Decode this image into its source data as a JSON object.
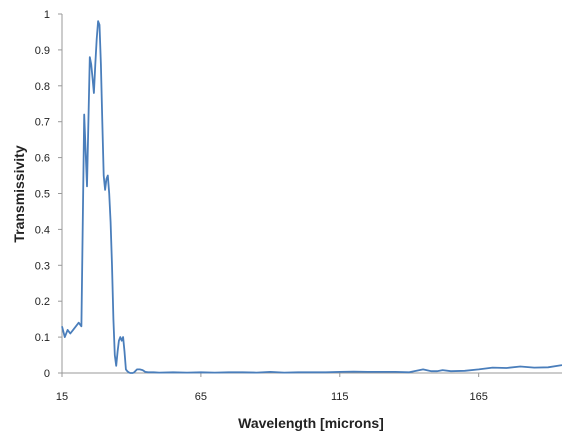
{
  "chart_data": {
    "type": "line",
    "title": "",
    "xlabel": "Wavelength [microns]",
    "ylabel": "Transmissivity",
    "xlim": [
      15,
      195
    ],
    "ylim": [
      0,
      1
    ],
    "x_ticks": [
      "15",
      "65",
      "115",
      "165"
    ],
    "y_ticks": [
      "0",
      "0.1",
      "0.2",
      "0.3",
      "0.4",
      "0.5",
      "0.6",
      "0.7",
      "0.8",
      "0.9",
      "1"
    ],
    "grid": false,
    "legend": "none",
    "series": [
      {
        "color": "#4a7ebb",
        "x": [
          15,
          16,
          17,
          18,
          19,
          20,
          21,
          22,
          23,
          24,
          25,
          25.5,
          26,
          26.5,
          27,
          27.5,
          28,
          28.5,
          29,
          29.5,
          30,
          30.5,
          31,
          31.5,
          32,
          32.5,
          33,
          33.5,
          34,
          34.5,
          35,
          35.5,
          36,
          36.5,
          37,
          37.5,
          38,
          38.5,
          39,
          39.5,
          40,
          40.5,
          41,
          42,
          43,
          44,
          45,
          46,
          47,
          48,
          50,
          55,
          60,
          65,
          70,
          75,
          80,
          85,
          90,
          95,
          100,
          105,
          110,
          115,
          120,
          125,
          130,
          135,
          140,
          145,
          148,
          150,
          152,
          155,
          160,
          165,
          170,
          175,
          180,
          185,
          190,
          195
        ],
        "y": [
          0.13,
          0.1,
          0.12,
          0.11,
          0.12,
          0.13,
          0.14,
          0.13,
          0.72,
          0.52,
          0.88,
          0.86,
          0.82,
          0.78,
          0.86,
          0.93,
          0.98,
          0.97,
          0.86,
          0.7,
          0.55,
          0.51,
          0.54,
          0.55,
          0.5,
          0.42,
          0.3,
          0.15,
          0.05,
          0.02,
          0.06,
          0.09,
          0.1,
          0.09,
          0.1,
          0.06,
          0.01,
          0.005,
          0.002,
          0,
          0,
          0,
          0.002,
          0.01,
          0.01,
          0.008,
          0.003,
          0.002,
          0.002,
          0.002,
          0.001,
          0.002,
          0.001,
          0.002,
          0.001,
          0.002,
          0.002,
          0.001,
          0.003,
          0.001,
          0.002,
          0.002,
          0.002,
          0.003,
          0.004,
          0.003,
          0.003,
          0.003,
          0.002,
          0.01,
          0.005,
          0.005,
          0.008,
          0.005,
          0.006,
          0.01,
          0.015,
          0.014,
          0.018,
          0.015,
          0.016,
          0.022
        ]
      }
    ]
  }
}
